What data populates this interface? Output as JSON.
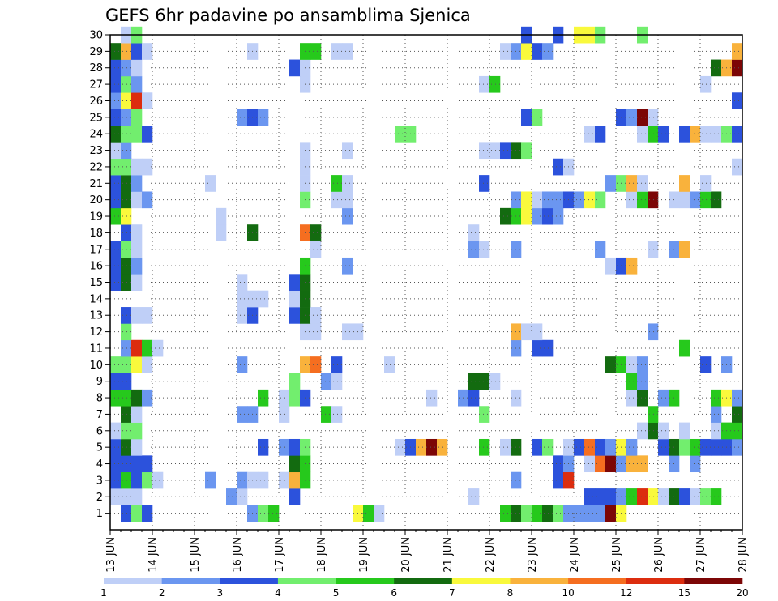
{
  "chart_data": {
    "type": "heatmap",
    "title": "GEFS 6hr padavine po ansamblima Sjenica",
    "xlabel": "",
    "ylabel": "",
    "x_ticks": [
      "13 JUN",
      "14 JUN",
      "15 JUN",
      "16 JUN",
      "17 JUN",
      "18 JUN",
      "19 JUN",
      "20 JUN",
      "21 JUN",
      "22 JUN",
      "23 JUN",
      "24 JUN",
      "25 JUN",
      "26 JUN",
      "27 JUN",
      "28 JUN"
    ],
    "members": [
      1,
      2,
      3,
      4,
      5,
      6,
      7,
      8,
      9,
      10,
      11,
      12,
      13,
      14,
      15,
      16,
      17,
      18,
      19,
      20,
      21,
      22,
      23,
      24,
      25,
      26,
      27,
      28,
      29,
      30
    ],
    "time_steps_per_day": 4,
    "time_steps": 60,
    "grid": true,
    "colorbar": {
      "labels": [
        "1",
        "2",
        "3",
        "4",
        "5",
        "6",
        "7",
        "8",
        "10",
        "12",
        "15",
        "20"
      ],
      "colors": [
        "#bfcff7",
        "#6b96f0",
        "#2c52dc",
        "#72ee6e",
        "#26c91c",
        "#136b10",
        "#f9f93c",
        "#f9b23c",
        "#f56e20",
        "#dc2d0f",
        "#7c0606"
      ],
      "placement": "bottom"
    },
    "cells": [
      [
        1,
        2,
        3
      ],
      [
        1,
        3,
        4
      ],
      [
        1,
        4,
        3
      ],
      [
        1,
        14,
        2
      ],
      [
        1,
        15,
        4
      ],
      [
        1,
        16,
        5
      ],
      [
        1,
        24,
        7
      ],
      [
        1,
        25,
        5
      ],
      [
        1,
        26,
        1
      ],
      [
        1,
        38,
        5
      ],
      [
        1,
        39,
        6
      ],
      [
        1,
        40,
        4
      ],
      [
        1,
        41,
        5
      ],
      [
        1,
        42,
        6
      ],
      [
        1,
        43,
        4
      ],
      [
        1,
        44,
        2
      ],
      [
        1,
        45,
        2
      ],
      [
        1,
        46,
        2
      ],
      [
        1,
        47,
        2
      ],
      [
        1,
        48,
        11
      ],
      [
        1,
        49,
        7
      ],
      [
        2,
        1,
        1
      ],
      [
        2,
        2,
        1
      ],
      [
        2,
        3,
        1
      ],
      [
        2,
        12,
        2
      ],
      [
        2,
        13,
        1
      ],
      [
        2,
        18,
        3
      ],
      [
        2,
        35,
        1
      ],
      [
        2,
        46,
        3
      ],
      [
        2,
        47,
        3
      ],
      [
        2,
        48,
        3
      ],
      [
        2,
        49,
        2
      ],
      [
        2,
        50,
        5
      ],
      [
        2,
        51,
        10
      ],
      [
        2,
        52,
        7
      ],
      [
        2,
        53,
        1
      ],
      [
        2,
        54,
        6
      ],
      [
        2,
        55,
        3
      ],
      [
        2,
        56,
        1
      ],
      [
        2,
        57,
        4
      ],
      [
        2,
        58,
        5
      ],
      [
        3,
        1,
        3
      ],
      [
        3,
        2,
        5
      ],
      [
        3,
        3,
        3
      ],
      [
        3,
        4,
        4
      ],
      [
        3,
        5,
        1
      ],
      [
        3,
        10,
        2
      ],
      [
        3,
        13,
        2
      ],
      [
        3,
        14,
        1
      ],
      [
        3,
        15,
        1
      ],
      [
        3,
        17,
        1
      ],
      [
        3,
        18,
        8
      ],
      [
        3,
        19,
        5
      ],
      [
        3,
        39,
        2
      ],
      [
        3,
        43,
        3
      ],
      [
        3,
        44,
        10
      ],
      [
        4,
        1,
        3
      ],
      [
        4,
        2,
        3
      ],
      [
        4,
        3,
        3
      ],
      [
        4,
        4,
        3
      ],
      [
        4,
        18,
        6
      ],
      [
        4,
        19,
        5
      ],
      [
        4,
        43,
        3
      ],
      [
        4,
        44,
        2
      ],
      [
        4,
        46,
        1
      ],
      [
        4,
        47,
        9
      ],
      [
        4,
        48,
        11
      ],
      [
        4,
        49,
        2
      ],
      [
        4,
        50,
        8
      ],
      [
        4,
        51,
        8
      ],
      [
        4,
        54,
        2
      ],
      [
        4,
        56,
        2
      ],
      [
        5,
        1,
        3
      ],
      [
        5,
        2,
        6
      ],
      [
        5,
        3,
        1
      ],
      [
        5,
        15,
        3
      ],
      [
        5,
        17,
        2
      ],
      [
        5,
        18,
        3
      ],
      [
        5,
        19,
        4
      ],
      [
        5,
        28,
        1
      ],
      [
        5,
        29,
        3
      ],
      [
        5,
        30,
        8
      ],
      [
        5,
        31,
        11
      ],
      [
        5,
        32,
        8
      ],
      [
        5,
        36,
        5
      ],
      [
        5,
        38,
        1
      ],
      [
        5,
        39,
        6
      ],
      [
        5,
        41,
        3
      ],
      [
        5,
        42,
        4
      ],
      [
        5,
        44,
        1
      ],
      [
        5,
        45,
        3
      ],
      [
        5,
        46,
        9
      ],
      [
        5,
        47,
        3
      ],
      [
        5,
        48,
        2
      ],
      [
        5,
        49,
        7
      ],
      [
        5,
        50,
        2
      ],
      [
        5,
        53,
        3
      ],
      [
        5,
        54,
        6
      ],
      [
        5,
        55,
        4
      ],
      [
        5,
        56,
        5
      ],
      [
        5,
        57,
        3
      ],
      [
        5,
        58,
        3
      ],
      [
        5,
        59,
        3
      ],
      [
        5,
        60,
        2
      ],
      [
        6,
        1,
        1
      ],
      [
        6,
        2,
        4
      ],
      [
        6,
        3,
        4
      ],
      [
        6,
        51,
        1
      ],
      [
        6,
        52,
        6
      ],
      [
        6,
        53,
        1
      ],
      [
        6,
        55,
        1
      ],
      [
        6,
        58,
        1
      ],
      [
        6,
        59,
        5
      ],
      [
        6,
        60,
        5
      ],
      [
        7,
        2,
        6
      ],
      [
        7,
        3,
        1
      ],
      [
        7,
        13,
        2
      ],
      [
        7,
        14,
        2
      ],
      [
        7,
        17,
        1
      ],
      [
        7,
        21,
        5
      ],
      [
        7,
        22,
        1
      ],
      [
        7,
        36,
        4
      ],
      [
        7,
        52,
        5
      ],
      [
        7,
        58,
        2
      ],
      [
        7,
        60,
        6
      ],
      [
        8,
        1,
        5
      ],
      [
        8,
        2,
        5
      ],
      [
        8,
        3,
        6
      ],
      [
        8,
        4,
        2
      ],
      [
        8,
        15,
        5
      ],
      [
        8,
        17,
        1
      ],
      [
        8,
        18,
        4
      ],
      [
        8,
        19,
        3
      ],
      [
        8,
        31,
        1
      ],
      [
        8,
        34,
        2
      ],
      [
        8,
        35,
        3
      ],
      [
        8,
        39,
        1
      ],
      [
        8,
        50,
        1
      ],
      [
        8,
        51,
        6
      ],
      [
        8,
        53,
        2
      ],
      [
        8,
        54,
        5
      ],
      [
        8,
        58,
        5
      ],
      [
        8,
        59,
        7
      ],
      [
        8,
        60,
        2
      ],
      [
        9,
        1,
        3
      ],
      [
        9,
        2,
        3
      ],
      [
        9,
        18,
        4
      ],
      [
        9,
        21,
        2
      ],
      [
        9,
        22,
        1
      ],
      [
        9,
        35,
        6
      ],
      [
        9,
        36,
        6
      ],
      [
        9,
        37,
        1
      ],
      [
        9,
        50,
        5
      ],
      [
        9,
        51,
        2
      ],
      [
        10,
        1,
        4
      ],
      [
        10,
        2,
        4
      ],
      [
        10,
        3,
        7
      ],
      [
        10,
        4,
        1
      ],
      [
        10,
        13,
        2
      ],
      [
        10,
        19,
        8
      ],
      [
        10,
        20,
        9
      ],
      [
        10,
        22,
        3
      ],
      [
        10,
        27,
        1
      ],
      [
        10,
        48,
        6
      ],
      [
        10,
        49,
        5
      ],
      [
        10,
        50,
        1
      ],
      [
        10,
        51,
        2
      ],
      [
        10,
        57,
        3
      ],
      [
        10,
        59,
        2
      ],
      [
        11,
        2,
        2
      ],
      [
        11,
        3,
        10
      ],
      [
        11,
        4,
        5
      ],
      [
        11,
        5,
        1
      ],
      [
        11,
        39,
        2
      ],
      [
        11,
        41,
        3
      ],
      [
        11,
        42,
        3
      ],
      [
        11,
        55,
        5
      ],
      [
        12,
        2,
        4
      ],
      [
        12,
        19,
        1
      ],
      [
        12,
        20,
        1
      ],
      [
        12,
        23,
        1
      ],
      [
        12,
        24,
        1
      ],
      [
        12,
        39,
        8
      ],
      [
        12,
        40,
        1
      ],
      [
        12,
        41,
        1
      ],
      [
        12,
        52,
        2
      ],
      [
        13,
        2,
        3
      ],
      [
        13,
        3,
        1
      ],
      [
        13,
        4,
        1
      ],
      [
        13,
        13,
        1
      ],
      [
        13,
        14,
        3
      ],
      [
        13,
        18,
        3
      ],
      [
        13,
        19,
        6
      ],
      [
        13,
        20,
        1
      ],
      [
        14,
        13,
        1
      ],
      [
        14,
        14,
        1
      ],
      [
        14,
        15,
        1
      ],
      [
        14,
        18,
        1
      ],
      [
        14,
        19,
        6
      ],
      [
        15,
        1,
        3
      ],
      [
        15,
        2,
        6
      ],
      [
        15,
        3,
        1
      ],
      [
        15,
        13,
        1
      ],
      [
        15,
        18,
        3
      ],
      [
        15,
        19,
        6
      ],
      [
        16,
        1,
        3
      ],
      [
        16,
        2,
        6
      ],
      [
        16,
        3,
        2
      ],
      [
        16,
        19,
        5
      ],
      [
        16,
        23,
        2
      ],
      [
        16,
        48,
        1
      ],
      [
        16,
        49,
        3
      ],
      [
        16,
        50,
        8
      ],
      [
        17,
        1,
        3
      ],
      [
        17,
        2,
        4
      ],
      [
        17,
        3,
        1
      ],
      [
        17,
        20,
        1
      ],
      [
        17,
        35,
        2
      ],
      [
        17,
        36,
        1
      ],
      [
        17,
        39,
        2
      ],
      [
        17,
        47,
        2
      ],
      [
        17,
        52,
        1
      ],
      [
        17,
        54,
        2
      ],
      [
        17,
        55,
        8
      ],
      [
        18,
        2,
        3
      ],
      [
        18,
        3,
        1
      ],
      [
        18,
        11,
        1
      ],
      [
        18,
        14,
        6
      ],
      [
        18,
        19,
        9
      ],
      [
        18,
        20,
        6
      ],
      [
        18,
        35,
        1
      ],
      [
        19,
        1,
        5
      ],
      [
        19,
        2,
        7
      ],
      [
        19,
        11,
        1
      ],
      [
        19,
        23,
        2
      ],
      [
        19,
        38,
        6
      ],
      [
        19,
        39,
        5
      ],
      [
        19,
        40,
        7
      ],
      [
        19,
        41,
        2
      ],
      [
        19,
        42,
        3
      ],
      [
        19,
        43,
        2
      ],
      [
        20,
        1,
        3
      ],
      [
        20,
        2,
        6
      ],
      [
        20,
        3,
        1
      ],
      [
        20,
        4,
        2
      ],
      [
        20,
        19,
        4
      ],
      [
        20,
        22,
        1
      ],
      [
        20,
        23,
        1
      ],
      [
        20,
        39,
        2
      ],
      [
        20,
        40,
        7
      ],
      [
        20,
        41,
        1
      ],
      [
        20,
        42,
        2
      ],
      [
        20,
        43,
        2
      ],
      [
        20,
        44,
        3
      ],
      [
        20,
        45,
        2
      ],
      [
        20,
        46,
        7
      ],
      [
        20,
        47,
        4
      ],
      [
        20,
        50,
        1
      ],
      [
        20,
        51,
        5
      ],
      [
        20,
        52,
        11
      ],
      [
        20,
        54,
        1
      ],
      [
        20,
        55,
        1
      ],
      [
        20,
        56,
        2
      ],
      [
        20,
        57,
        5
      ],
      [
        20,
        58,
        6
      ],
      [
        21,
        1,
        3
      ],
      [
        21,
        2,
        6
      ],
      [
        21,
        3,
        2
      ],
      [
        21,
        10,
        1
      ],
      [
        21,
        19,
        1
      ],
      [
        21,
        22,
        5
      ],
      [
        21,
        23,
        1
      ],
      [
        21,
        36,
        3
      ],
      [
        21,
        48,
        2
      ],
      [
        21,
        49,
        4
      ],
      [
        21,
        50,
        8
      ],
      [
        21,
        51,
        1
      ],
      [
        21,
        55,
        8
      ],
      [
        21,
        57,
        1
      ],
      [
        22,
        1,
        4
      ],
      [
        22,
        2,
        4
      ],
      [
        22,
        3,
        1
      ],
      [
        22,
        4,
        1
      ],
      [
        22,
        19,
        1
      ],
      [
        22,
        43,
        3
      ],
      [
        22,
        44,
        1
      ],
      [
        22,
        60,
        1
      ],
      [
        23,
        1,
        1
      ],
      [
        23,
        2,
        2
      ],
      [
        23,
        19,
        1
      ],
      [
        23,
        23,
        1
      ],
      [
        23,
        36,
        1
      ],
      [
        23,
        37,
        1
      ],
      [
        23,
        38,
        3
      ],
      [
        23,
        39,
        6
      ],
      [
        23,
        40,
        4
      ],
      [
        24,
        1,
        6
      ],
      [
        24,
        2,
        4
      ],
      [
        24,
        3,
        4
      ],
      [
        24,
        4,
        3
      ],
      [
        24,
        28,
        4
      ],
      [
        24,
        29,
        4
      ],
      [
        24,
        46,
        1
      ],
      [
        24,
        47,
        3
      ],
      [
        24,
        51,
        1
      ],
      [
        24,
        52,
        5
      ],
      [
        24,
        53,
        3
      ],
      [
        24,
        55,
        3
      ],
      [
        24,
        56,
        8
      ],
      [
        24,
        57,
        1
      ],
      [
        24,
        58,
        1
      ],
      [
        24,
        59,
        4
      ],
      [
        24,
        60,
        3
      ],
      [
        25,
        1,
        3
      ],
      [
        25,
        2,
        2
      ],
      [
        25,
        3,
        4
      ],
      [
        25,
        13,
        2
      ],
      [
        25,
        14,
        3
      ],
      [
        25,
        15,
        2
      ],
      [
        25,
        40,
        3
      ],
      [
        25,
        41,
        4
      ],
      [
        25,
        49,
        3
      ],
      [
        25,
        50,
        2
      ],
      [
        25,
        51,
        11
      ],
      [
        25,
        52,
        1
      ],
      [
        26,
        1,
        2
      ],
      [
        26,
        2,
        7
      ],
      [
        26,
        3,
        10
      ],
      [
        26,
        4,
        1
      ],
      [
        26,
        60,
        3
      ],
      [
        27,
        1,
        3
      ],
      [
        27,
        2,
        4
      ],
      [
        27,
        3,
        2
      ],
      [
        27,
        19,
        1
      ],
      [
        27,
        36,
        1
      ],
      [
        27,
        37,
        5
      ],
      [
        27,
        57,
        1
      ],
      [
        28,
        1,
        3
      ],
      [
        28,
        2,
        2
      ],
      [
        28,
        3,
        1
      ],
      [
        28,
        18,
        3
      ],
      [
        28,
        19,
        1
      ],
      [
        28,
        58,
        6
      ],
      [
        28,
        59,
        8
      ],
      [
        28,
        60,
        11
      ],
      [
        29,
        1,
        6
      ],
      [
        29,
        2,
        8
      ],
      [
        29,
        3,
        3
      ],
      [
        29,
        4,
        1
      ],
      [
        29,
        14,
        1
      ],
      [
        29,
        19,
        5
      ],
      [
        29,
        20,
        5
      ],
      [
        29,
        22,
        1
      ],
      [
        29,
        23,
        1
      ],
      [
        29,
        38,
        1
      ],
      [
        29,
        39,
        2
      ],
      [
        29,
        40,
        7
      ],
      [
        29,
        41,
        3
      ],
      [
        29,
        42,
        2
      ],
      [
        29,
        60,
        8
      ],
      [
        30,
        2,
        1
      ],
      [
        30,
        3,
        4
      ],
      [
        30,
        40,
        3
      ],
      [
        30,
        43,
        3
      ],
      [
        30,
        45,
        7
      ],
      [
        30,
        46,
        7
      ],
      [
        30,
        47,
        4
      ],
      [
        30,
        51,
        4
      ]
    ]
  }
}
